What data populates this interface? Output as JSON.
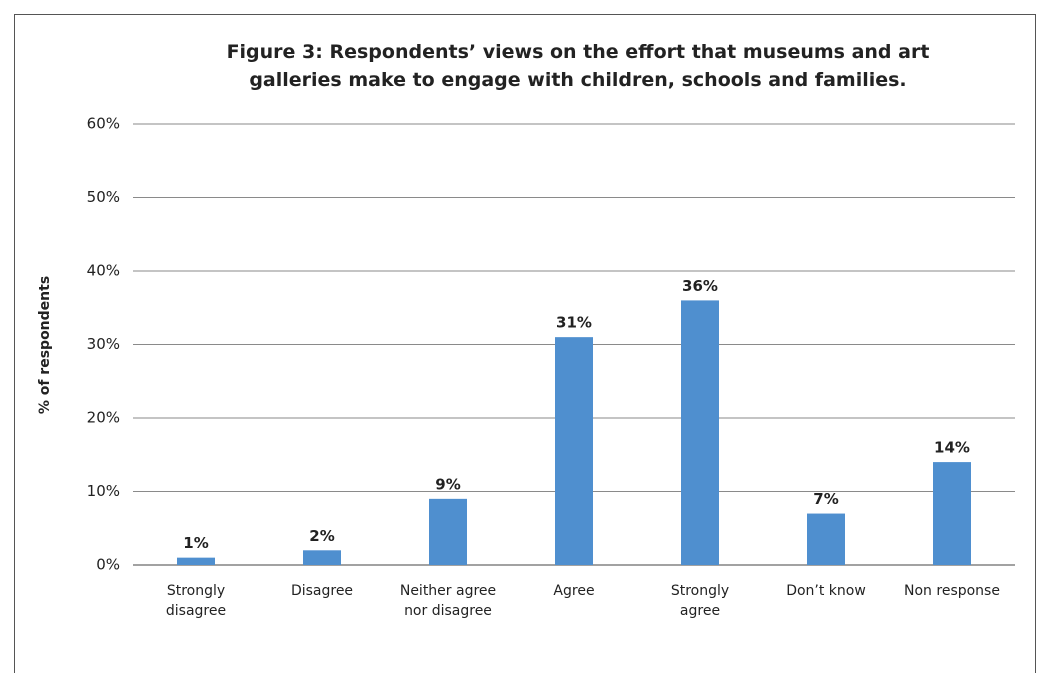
{
  "chart_data": {
    "type": "bar",
    "title": "Figure 3: Respondents’ views on the effort that museums and art galleries make to engage with children, schools and families.",
    "y_label": "% of respondents",
    "categories": [
      "Strongly disagree",
      "Disagree",
      "Neither agree nor disagree",
      "Agree",
      "Strongly agree",
      "Don’t know",
      "Non response"
    ],
    "values": [
      1,
      2,
      9,
      31,
      36,
      7,
      14
    ],
    "value_labels": [
      "1%",
      "2%",
      "9%",
      "31%",
      "36%",
      "7%",
      "14%"
    ],
    "color": "#4f8fcf",
    "ylim": [
      0,
      60
    ],
    "yticks": [
      {
        "value": 0,
        "label": "0%"
      },
      {
        "value": 10,
        "label": "10%"
      },
      {
        "value": 20,
        "label": "20%"
      },
      {
        "value": 30,
        "label": "30%"
      },
      {
        "value": 40,
        "label": "40%"
      },
      {
        "value": 50,
        "label": "50%"
      },
      {
        "value": 60,
        "label": "60%"
      }
    ],
    "grid": true
  }
}
